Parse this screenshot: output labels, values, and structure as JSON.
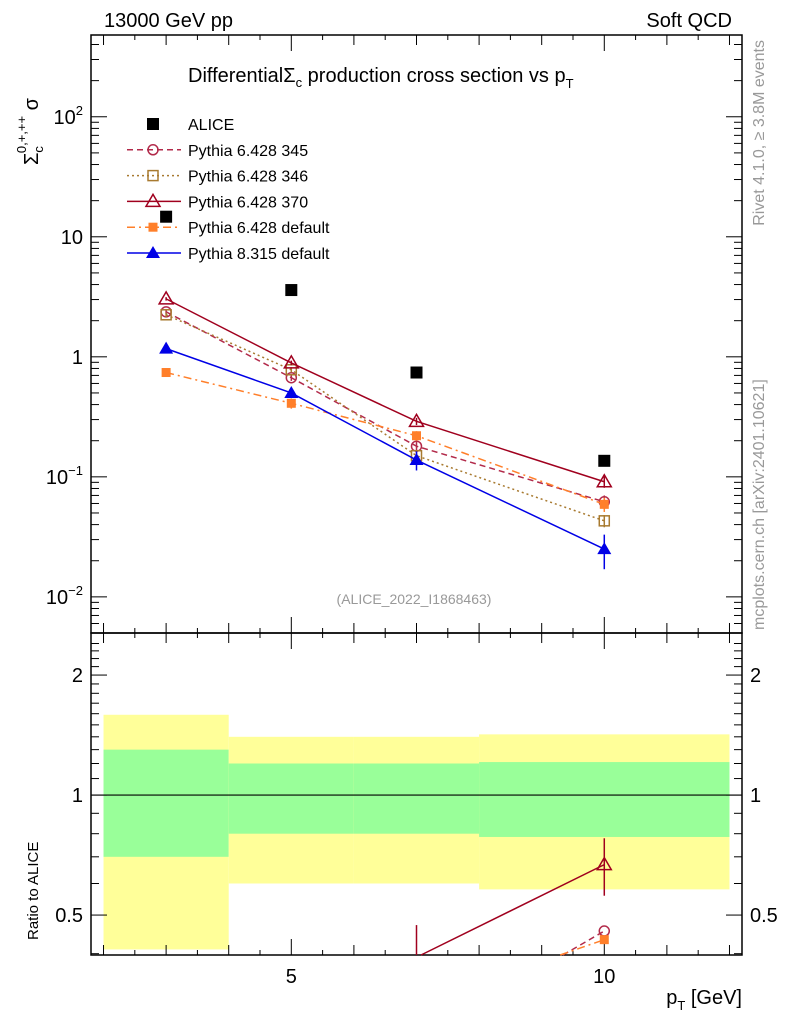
{
  "header": {
    "left": "13000 GeV pp",
    "right": "Soft QCD"
  },
  "side": {
    "rivet": "Rivet 4.1.0, ≥ 3.8M events",
    "mcplots": "mcplots.cern.ch [arXiv:2401.10621]"
  },
  "chart_data": [
    {
      "type": "line",
      "title": "DifferentialΣc production cross section vs pT",
      "title_parts": {
        "a": "Differential",
        "b": "Σ",
        "c": "c",
        "d": " production cross section vs p",
        "e": "T"
      },
      "ylabel": "Σc0,+,++ σ",
      "ylabel_parts": {
        "sym": "Σ",
        "sub": "c",
        "sup": "0,+,++",
        "rest": "σ"
      },
      "yscale": "log",
      "ylim": [
        0.005,
        480
      ],
      "xlim": [
        1.8,
        12.2
      ],
      "ytick_labels": [
        {
          "v": 100,
          "m": "10",
          "e": "2"
        },
        {
          "v": 10,
          "m": "10",
          "e": ""
        },
        {
          "v": 1,
          "m": "1",
          "e": ""
        },
        {
          "v": 0.1,
          "m": "10",
          "e": "−1"
        },
        {
          "v": 0.01,
          "m": "10",
          "e": "−2"
        }
      ],
      "watermark": "(ALICE_2022_I1868463)",
      "legend_placement": "top-left",
      "x": [
        3,
        5,
        7,
        10
      ],
      "series": [
        {
          "name": "ALICE",
          "color": "#000000",
          "marker": "square-filled",
          "line": "none",
          "values": [
            14.7,
            3.6,
            0.74,
            0.136
          ],
          "err": [
            0,
            0,
            0,
            0
          ]
        },
        {
          "name": "Pythia 6.428 345",
          "color": "#b22a4a",
          "marker": "circle-open",
          "line": "dashed",
          "values": [
            2.37,
            0.67,
            0.18,
            0.062
          ],
          "err": [
            0.1,
            0.04,
            0.015,
            0.008
          ]
        },
        {
          "name": "Pythia 6.428 346",
          "color": "#a87a30",
          "marker": "square-open",
          "line": "dotted",
          "values": [
            2.24,
            0.78,
            0.15,
            0.043
          ],
          "err": [
            0.1,
            0.04,
            0.012,
            0.005
          ]
        },
        {
          "name": "Pythia 6.428 370",
          "color": "#a0001e",
          "marker": "triangle-open",
          "line": "solid",
          "values": [
            3.04,
            0.89,
            0.29,
            0.091
          ],
          "err": [
            0.1,
            0.04,
            0.02,
            0.01
          ]
        },
        {
          "name": "Pythia 6.428 default",
          "color": "#ff7f2a",
          "marker": "square-filled-small",
          "line": "dashdot",
          "values": [
            0.74,
            0.41,
            0.22,
            0.059
          ],
          "err": [
            0.04,
            0.04,
            0.02,
            0.008
          ]
        },
        {
          "name": "Pythia 8.315 default",
          "color": "#0000e6",
          "marker": "triangle-filled",
          "line": "solid",
          "values": [
            1.17,
            0.5,
            0.138,
            0.025
          ],
          "err": [
            0.03,
            0.04,
            0.025,
            0.008
          ]
        }
      ]
    },
    {
      "type": "line",
      "ylabel": "Ratio to ALICE",
      "xlabel": "pT [GeV]",
      "xlabel_parts": {
        "p": "p",
        "sub": "T",
        "rest": " [GeV]"
      },
      "yscale": "log",
      "ylim": [
        0.397,
        2.55
      ],
      "xlim": [
        1.8,
        12.2
      ],
      "ytick_labels": [
        {
          "v": 2,
          "t": "2"
        },
        {
          "v": 1,
          "t": "1"
        },
        {
          "v": 0.5,
          "t": "0.5"
        }
      ],
      "xtick_labels": [
        {
          "v": 5,
          "t": "5"
        },
        {
          "v": 10,
          "t": "10"
        }
      ],
      "bands": [
        {
          "x0": 2,
          "x1": 4,
          "yellow": [
            0.41,
            1.59
          ],
          "green": [
            0.7,
            1.3
          ]
        },
        {
          "x0": 4,
          "x1": 6,
          "yellow": [
            0.6,
            1.4
          ],
          "green": [
            0.8,
            1.2
          ]
        },
        {
          "x0": 6,
          "x1": 8,
          "yellow": [
            0.6,
            1.4
          ],
          "green": [
            0.8,
            1.2
          ]
        },
        {
          "x0": 8,
          "x1": 12,
          "yellow": [
            0.58,
            1.42
          ],
          "green": [
            0.785,
            1.21
          ]
        }
      ],
      "band_colors": {
        "yellow": "#ffff99",
        "green": "#99ff99"
      },
      "ratio_errors": {
        "Pythia 6.428 370": [
          0.05,
          0.05,
          0.08,
          0.11
        ]
      }
    }
  ]
}
